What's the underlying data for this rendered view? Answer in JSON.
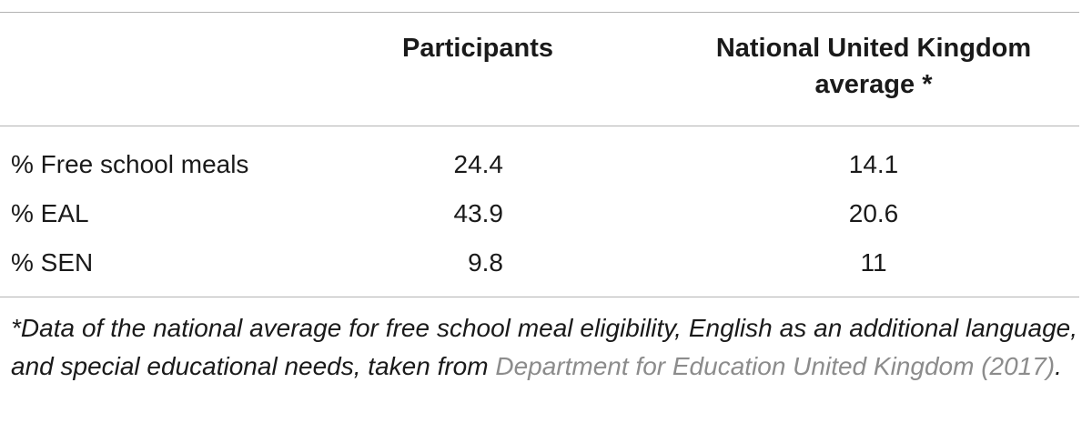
{
  "table": {
    "headers": {
      "col1": "",
      "col2": "Participants",
      "col3_line1": "National United Kingdom",
      "col3_line2": "average *"
    },
    "rows": [
      {
        "label": "% Free school meals",
        "participants": "24.4",
        "national": "14.1"
      },
      {
        "label": "% EAL",
        "participants": "43.9",
        "national": "20.6"
      },
      {
        "label": "% SEN",
        "participants": "9.8",
        "national": "11"
      }
    ]
  },
  "footnote": {
    "text": "*Data of the national average for free school meal eligibility, English as an additional language, and special educational needs, taken from ",
    "reference": "Department for Education United Kingdom (2017)",
    "end": "."
  },
  "colors": {
    "rule": "#b3b3b3",
    "text": "#1a1a1a",
    "reference_link": "#8c8c8c"
  }
}
